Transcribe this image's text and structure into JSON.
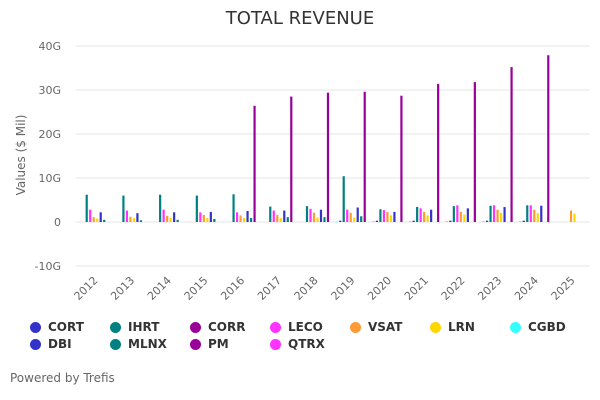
{
  "chart_data": {
    "type": "bar",
    "title": "TOTAL REVENUE",
    "xlabel": "",
    "ylabel": "Values ($ Mil)",
    "ylim": [
      -10,
      40
    ],
    "yticks": [
      {
        "value": 40,
        "label": "40G"
      },
      {
        "value": 30,
        "label": "30G"
      },
      {
        "value": 20,
        "label": "20G"
      },
      {
        "value": 10,
        "label": "10G"
      },
      {
        "value": 0,
        "label": "0"
      },
      {
        "value": -10,
        "label": "-10G"
      }
    ],
    "grid": true,
    "legend_position": "bottom",
    "categories": [
      "2012",
      "2013",
      "2014",
      "2015",
      "2016",
      "2017",
      "2018",
      "2019",
      "2020",
      "2021",
      "2022",
      "2023",
      "2024",
      "2025"
    ],
    "series": [
      {
        "name": "CGBD",
        "color": "#33ffff",
        "values": [
          null,
          null,
          null,
          null,
          null,
          null,
          null,
          0.1,
          0.2,
          0.2,
          0.2,
          0.2,
          0.2,
          null
        ]
      },
      {
        "name": "DBI",
        "color": "#3333cc",
        "values": [
          null,
          null,
          null,
          null,
          null,
          null,
          null,
          0.3,
          0.3,
          0.3,
          0.3,
          0.3,
          0.3,
          null
        ]
      },
      {
        "name": "IHRT",
        "color": "#008080",
        "values": [
          6.2,
          6.0,
          6.2,
          6.0,
          6.3,
          3.5,
          3.6,
          10.4,
          2.9,
          3.4,
          3.6,
          3.7,
          3.8,
          null
        ]
      },
      {
        "name": "LECO",
        "color": "#ff33ff",
        "values": [
          2.8,
          2.6,
          2.8,
          2.2,
          2.2,
          2.6,
          3.0,
          2.8,
          2.7,
          3.1,
          3.8,
          3.8,
          3.8,
          null
        ]
      },
      {
        "name": "VSAT",
        "color": "#ff9933",
        "values": [
          1.1,
          1.2,
          1.4,
          1.6,
          1.5,
          1.6,
          2.1,
          2.1,
          2.3,
          2.3,
          2.3,
          2.8,
          2.8,
          2.6
        ]
      },
      {
        "name": "LRN",
        "color": "#ffd700",
        "values": [
          0.8,
          0.9,
          0.9,
          0.9,
          0.9,
          0.9,
          1.0,
          1.0,
          1.5,
          1.5,
          1.7,
          2.1,
          2.0,
          1.9
        ]
      },
      {
        "name": "CORT",
        "color": "#3333cc",
        "values": [
          2.2,
          2.0,
          2.2,
          2.3,
          2.5,
          2.6,
          2.8,
          3.3,
          2.3,
          2.8,
          3.1,
          3.4,
          3.7,
          null
        ]
      },
      {
        "name": "MLNX",
        "color": "#008080",
        "values": [
          0.5,
          0.4,
          0.5,
          0.7,
          0.9,
          1.1,
          1.1,
          1.3,
          null,
          null,
          null,
          null,
          null,
          null
        ]
      },
      {
        "name": "PM",
        "color": "#990099",
        "values": [
          null,
          null,
          null,
          null,
          26.4,
          28.5,
          29.4,
          29.6,
          28.7,
          31.4,
          31.8,
          35.2,
          37.9,
          null
        ]
      },
      {
        "name": "CORR",
        "color": "#990099",
        "values": [
          null,
          null,
          null,
          null,
          null,
          null,
          null,
          null,
          null,
          null,
          null,
          null,
          null,
          null
        ]
      },
      {
        "name": "QTRX",
        "color": "#ff33ff",
        "values": [
          null,
          null,
          null,
          null,
          null,
          null,
          null,
          null,
          null,
          null,
          null,
          null,
          null,
          null
        ]
      }
    ],
    "legend": [
      [
        {
          "name": "CORT",
          "color": "#3333cc"
        },
        {
          "name": "IHRT",
          "color": "#008080"
        },
        {
          "name": "CORR",
          "color": "#990099"
        },
        {
          "name": "LECO",
          "color": "#ff33ff"
        },
        {
          "name": "VSAT",
          "color": "#ff9933"
        },
        {
          "name": "LRN",
          "color": "#ffd700"
        },
        {
          "name": "CGBD",
          "color": "#33ffff"
        }
      ],
      [
        {
          "name": "DBI",
          "color": "#3333cc"
        },
        {
          "name": "MLNX",
          "color": "#008080"
        },
        {
          "name": "PM",
          "color": "#990099"
        },
        {
          "name": "QTRX",
          "color": "#ff33ff"
        }
      ]
    ]
  },
  "credits": "Powered by Trefis"
}
